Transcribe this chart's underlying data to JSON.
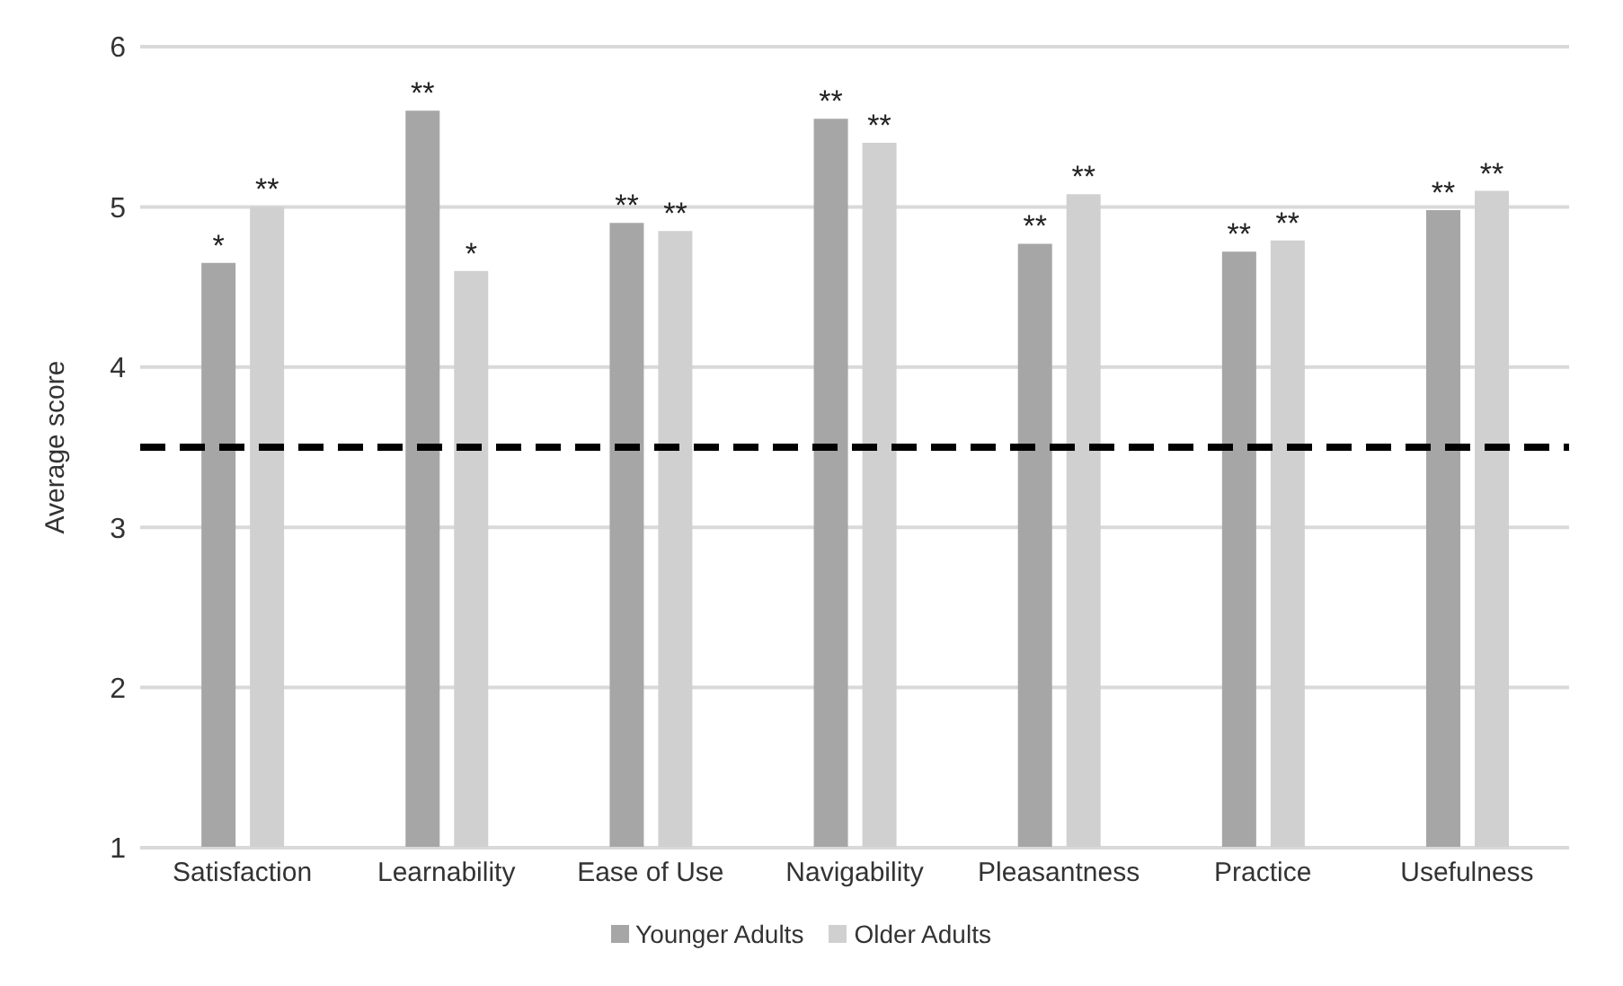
{
  "chart_data": {
    "type": "bar",
    "ylabel": "Average score",
    "categories": [
      "Satisfaction",
      "Learnability",
      "Ease of Use",
      "Navigability",
      "Pleasantness",
      "Practice",
      "Usefulness"
    ],
    "series": [
      {
        "name": "Younger Adults",
        "color": "#a6a6a6",
        "values": [
          4.65,
          5.6,
          4.9,
          5.55,
          4.77,
          4.72,
          4.98
        ],
        "value_labels": [
          "*",
          "**",
          "**",
          "**",
          "**",
          "**",
          "**"
        ]
      },
      {
        "name": "Older Adults",
        "color": "#d0d0d0",
        "values": [
          5.0,
          4.6,
          4.85,
          5.4,
          5.08,
          4.79,
          5.1
        ],
        "value_labels": [
          "**",
          "*",
          "**",
          "**",
          "**",
          "**",
          "**"
        ]
      }
    ],
    "ylim": [
      1,
      6
    ],
    "yticks": [
      1,
      2,
      3,
      4,
      5,
      6
    ],
    "grid": "y",
    "legend": "bottom",
    "ref_lines": [
      {
        "axis": "y",
        "value": 3.5,
        "color": "#000000",
        "line_style": "dashed"
      }
    ]
  }
}
